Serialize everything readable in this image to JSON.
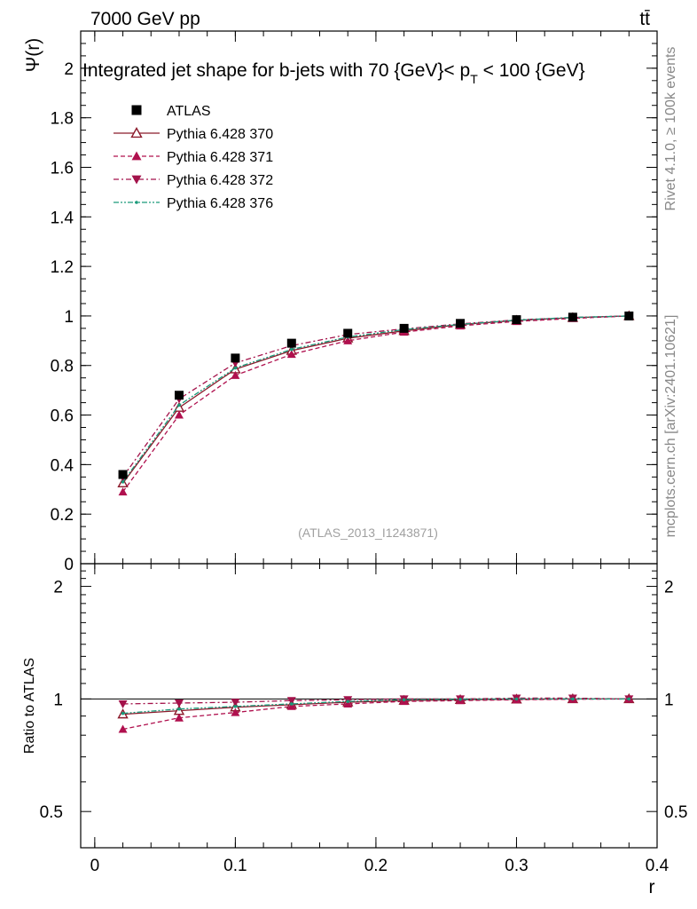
{
  "header": {
    "energy_label": "7000 GeV pp",
    "process_label": "tt̄"
  },
  "side_labels": {
    "rivet": "Rivet 4.1.0, ≥ 100k events",
    "mcplots": "mcplots.cern.ch [arXiv:2401.10621]"
  },
  "chart_data": {
    "type": "line",
    "title": "Integrated jet shape for b-jets with 70 {GeV}< p_T < 100 {GeV}",
    "title_parts": {
      "main": "Integrated jet shape for b-jets with 70 {GeV}< p",
      "sub": "T",
      "tail": " < 100 {GeV}"
    },
    "analysis_id": "(ATLAS_2013_I1243871)",
    "ylabel": "Ψ(r)",
    "ratio_ylabel": "Ratio to ATLAS",
    "xlabel": "r",
    "xlim": [
      -0.01,
      0.4
    ],
    "ylim": [
      0,
      2.15
    ],
    "ratio_ylim": [
      0.4,
      2.3
    ],
    "ratio_scale": "log",
    "x_ticks": [
      0,
      0.1,
      0.2,
      0.3,
      0.4
    ],
    "x_tick_labels": [
      "0",
      "0.1",
      "0.2",
      "0.3",
      "0.4"
    ],
    "y_ticks": [
      0,
      0.2,
      0.4,
      0.6,
      0.8,
      1,
      1.2,
      1.4,
      1.6,
      1.8,
      2
    ],
    "y_tick_labels": [
      "0",
      "0.2",
      "0.4",
      "0.6",
      "0.8",
      "1",
      "1.2",
      "1.4",
      "1.6",
      "1.8",
      "2"
    ],
    "ratio_ticks": [
      0.5,
      1,
      2
    ],
    "ratio_tick_labels": [
      "0.5",
      "1",
      "2"
    ],
    "x": [
      0.02,
      0.06,
      0.1,
      0.14,
      0.18,
      0.22,
      0.26,
      0.3,
      0.34,
      0.38
    ],
    "legend_position": "top-left",
    "series": [
      {
        "name": "ATLAS",
        "color": "#000000",
        "marker": "square",
        "dash": "none",
        "values": [
          0.36,
          0.68,
          0.83,
          0.89,
          0.93,
          0.95,
          0.97,
          0.985,
          0.995,
          1.0
        ]
      },
      {
        "name": "Pythia 6.428 370",
        "color": "#8b1a2b",
        "marker": "triangle-up-open",
        "dash": "solid",
        "values": [
          0.325,
          0.63,
          0.785,
          0.86,
          0.91,
          0.94,
          0.965,
          0.982,
          0.993,
          1.0
        ],
        "ratio": [
          0.91,
          0.93,
          0.95,
          0.965,
          0.98,
          0.99,
          0.995,
          0.998,
          1.0,
          1.0
        ]
      },
      {
        "name": "Pythia 6.428 371",
        "color": "#b0104e",
        "marker": "triangle-up",
        "dash": "dashed",
        "values": [
          0.29,
          0.6,
          0.76,
          0.845,
          0.9,
          0.935,
          0.96,
          0.978,
          0.99,
          1.0
        ],
        "ratio": [
          0.83,
          0.89,
          0.92,
          0.955,
          0.97,
          0.985,
          0.99,
          0.995,
          0.998,
          1.0
        ]
      },
      {
        "name": "Pythia 6.428 372",
        "color": "#a3124a",
        "marker": "triangle-down",
        "dash": "dashdot",
        "values": [
          0.35,
          0.665,
          0.81,
          0.88,
          0.925,
          0.948,
          0.968,
          0.984,
          0.994,
          1.0
        ],
        "ratio": [
          0.97,
          0.975,
          0.98,
          0.99,
          0.995,
          1.0,
          1.0,
          1.005,
          1.005,
          1.0
        ]
      },
      {
        "name": "Pythia 6.428 376",
        "color": "#1a9a7a",
        "marker": "dot",
        "dash": "dashdotdot",
        "values": [
          0.33,
          0.64,
          0.79,
          0.865,
          0.915,
          0.945,
          0.966,
          0.983,
          0.994,
          1.0
        ],
        "ratio": [
          0.915,
          0.94,
          0.955,
          0.97,
          0.985,
          0.995,
          0.998,
          1.0,
          1.0,
          1.0
        ]
      }
    ]
  }
}
